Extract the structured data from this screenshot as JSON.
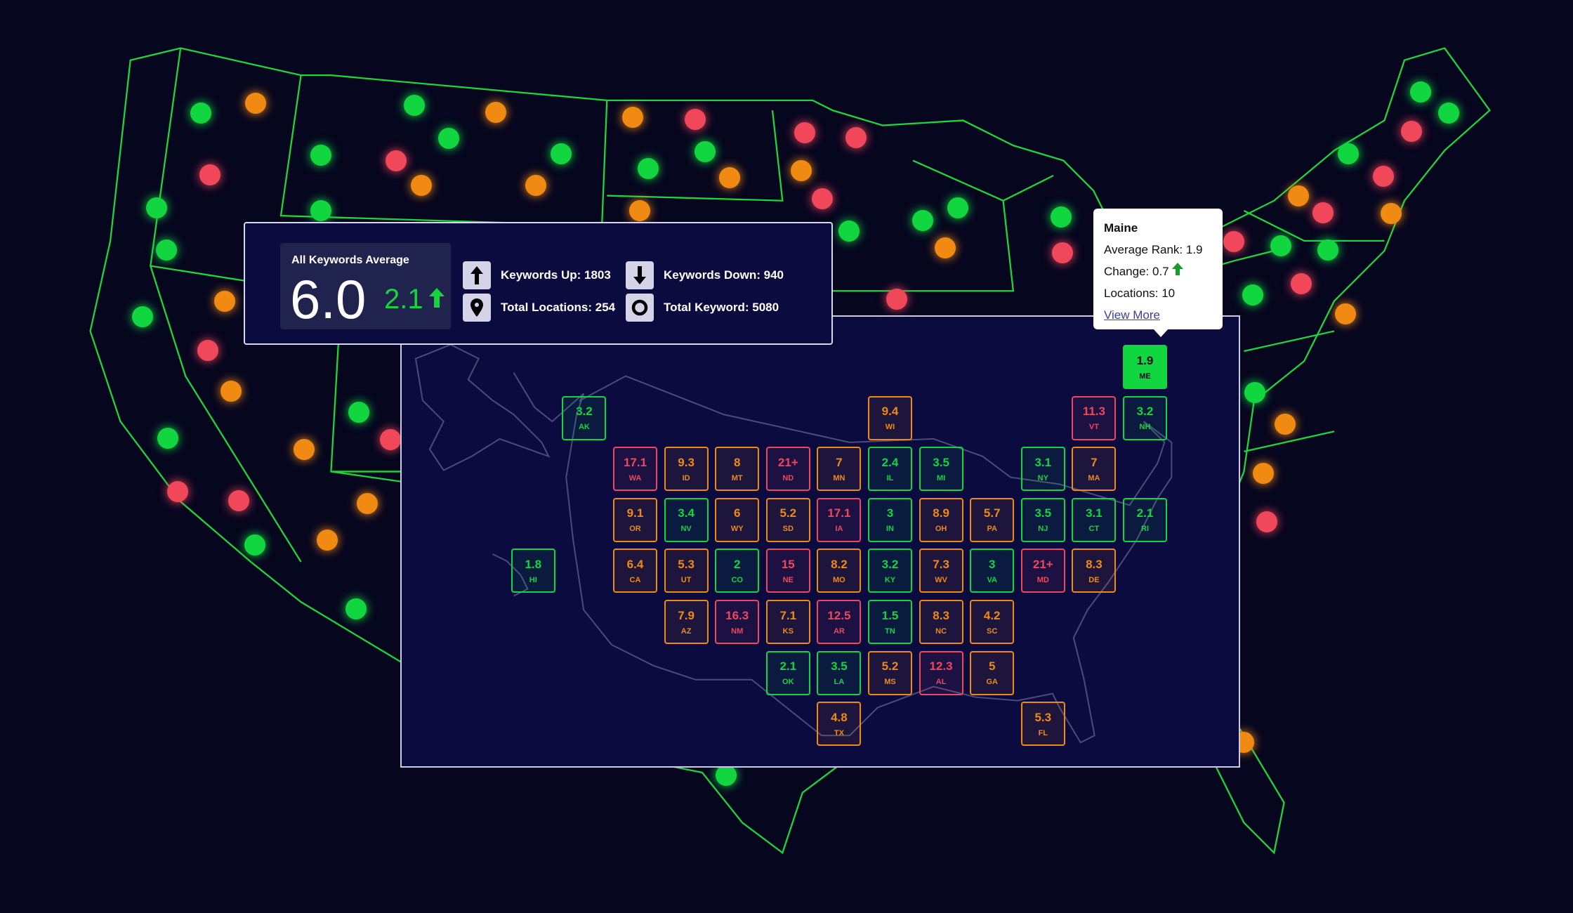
{
  "colors": {
    "good": "#12d63f",
    "warn": "#f08a12",
    "bad": "#f0475a",
    "map_outline": "#1fd63a",
    "background": "#06061f",
    "panel": "#0b0b40"
  },
  "summary": {
    "title": "All Keywords Average",
    "average": "6.0",
    "change": "2.1",
    "change_direction": "up",
    "keywords_up": "Keywords Up: 1803",
    "keywords_down": "Keywords Down: 940",
    "total_locations": "Total Locations: 254",
    "total_keyword": "Total Keyword: 5080"
  },
  "tooltip": {
    "state": "Maine",
    "average_rank": "Average Rank: 1.9",
    "change": "Change: 0.7",
    "change_direction": "up",
    "locations": "Locations: 10",
    "link": "View More"
  },
  "selected_state": "ME",
  "tiles": [
    {
      "abbr": "ME",
      "value": "1.9",
      "status": "good"
    },
    {
      "abbr": "AK",
      "value": "3.2",
      "status": "good"
    },
    {
      "abbr": "WI",
      "value": "9.4",
      "status": "warn"
    },
    {
      "abbr": "VT",
      "value": "11.3",
      "status": "bad"
    },
    {
      "abbr": "NH",
      "value": "3.2",
      "status": "good"
    },
    {
      "abbr": "WA",
      "value": "17.1",
      "status": "bad"
    },
    {
      "abbr": "ID",
      "value": "9.3",
      "status": "warn"
    },
    {
      "abbr": "MT",
      "value": "8",
      "status": "warn"
    },
    {
      "abbr": "ND",
      "value": "21+",
      "status": "bad"
    },
    {
      "abbr": "MN",
      "value": "7",
      "status": "warn"
    },
    {
      "abbr": "IL",
      "value": "2.4",
      "status": "good"
    },
    {
      "abbr": "MI",
      "value": "3.5",
      "status": "good"
    },
    {
      "abbr": "NY",
      "value": "3.1",
      "status": "good"
    },
    {
      "abbr": "MA",
      "value": "7",
      "status": "warn"
    },
    {
      "abbr": "OR",
      "value": "9.1",
      "status": "warn"
    },
    {
      "abbr": "NV",
      "value": "3.4",
      "status": "good"
    },
    {
      "abbr": "WY",
      "value": "6",
      "status": "warn"
    },
    {
      "abbr": "SD",
      "value": "5.2",
      "status": "warn"
    },
    {
      "abbr": "IA",
      "value": "17.1",
      "status": "bad"
    },
    {
      "abbr": "IN",
      "value": "3",
      "status": "good"
    },
    {
      "abbr": "OH",
      "value": "8.9",
      "status": "warn"
    },
    {
      "abbr": "PA",
      "value": "5.7",
      "status": "warn"
    },
    {
      "abbr": "NJ",
      "value": "3.5",
      "status": "good"
    },
    {
      "abbr": "CT",
      "value": "3.1",
      "status": "good"
    },
    {
      "abbr": "RI",
      "value": "2.1",
      "status": "good"
    },
    {
      "abbr": "HI",
      "value": "1.8",
      "status": "good"
    },
    {
      "abbr": "CA",
      "value": "6.4",
      "status": "warn"
    },
    {
      "abbr": "UT",
      "value": "5.3",
      "status": "warn"
    },
    {
      "abbr": "CO",
      "value": "2",
      "status": "good"
    },
    {
      "abbr": "NE",
      "value": "15",
      "status": "bad"
    },
    {
      "abbr": "MO",
      "value": "8.2",
      "status": "warn"
    },
    {
      "abbr": "KY",
      "value": "3.2",
      "status": "good"
    },
    {
      "abbr": "WV",
      "value": "7.3",
      "status": "warn"
    },
    {
      "abbr": "VA",
      "value": "3",
      "status": "good"
    },
    {
      "abbr": "MD",
      "value": "21+",
      "status": "bad"
    },
    {
      "abbr": "DE",
      "value": "8.3",
      "status": "warn"
    },
    {
      "abbr": "AZ",
      "value": "7.9",
      "status": "warn"
    },
    {
      "abbr": "NM",
      "value": "16.3",
      "status": "bad"
    },
    {
      "abbr": "KS",
      "value": "7.1",
      "status": "warn"
    },
    {
      "abbr": "AR",
      "value": "12.5",
      "status": "bad"
    },
    {
      "abbr": "TN",
      "value": "1.5",
      "status": "good"
    },
    {
      "abbr": "NC",
      "value": "8.3",
      "status": "warn"
    },
    {
      "abbr": "SC",
      "value": "4.2",
      "status": "warn"
    },
    {
      "abbr": "OK",
      "value": "2.1",
      "status": "good"
    },
    {
      "abbr": "LA",
      "value": "3.5",
      "status": "good"
    },
    {
      "abbr": "MS",
      "value": "5.2",
      "status": "warn"
    },
    {
      "abbr": "AL",
      "value": "12.3",
      "status": "bad"
    },
    {
      "abbr": "GA",
      "value": "5",
      "status": "warn"
    },
    {
      "abbr": "TX",
      "value": "4.8",
      "status": "warn"
    },
    {
      "abbr": "FL",
      "value": "5.3",
      "status": "warn"
    }
  ]
}
